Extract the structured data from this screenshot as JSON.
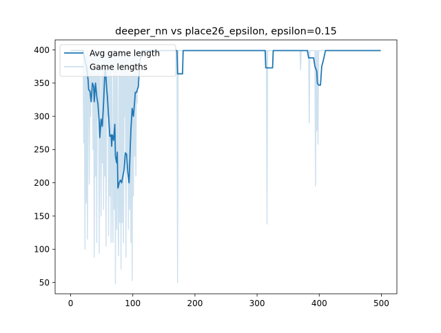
{
  "chart_data": {
    "type": "line",
    "title": "deeper_nn vs place26_epsilon, epsilon=0.15",
    "xlabel": "",
    "ylabel": "",
    "xlim": [
      -25,
      525
    ],
    "ylim": [
      33,
      415
    ],
    "x_ticks": [
      0,
      100,
      200,
      300,
      400,
      500
    ],
    "y_ticks": [
      50,
      100,
      150,
      200,
      250,
      300,
      350,
      400
    ],
    "grid": false,
    "legend_position": "top-left",
    "colors": {
      "avg": "#1f77b4",
      "raw": "#1f77b4"
    },
    "series": [
      {
        "name": "Avg game length",
        "style": "solid",
        "points": [
          [
            0,
            399
          ],
          [
            20,
            399
          ],
          [
            24,
            380
          ],
          [
            26,
            372
          ],
          [
            28,
            355
          ],
          [
            29,
            340
          ],
          [
            31,
            338
          ],
          [
            33,
            322
          ],
          [
            35,
            350
          ],
          [
            37,
            345
          ],
          [
            38,
            322
          ],
          [
            40,
            350
          ],
          [
            42,
            330
          ],
          [
            44,
            318
          ],
          [
            46,
            290
          ],
          [
            47,
            268
          ],
          [
            49,
            296
          ],
          [
            51,
            285
          ],
          [
            53,
            320
          ],
          [
            55,
            365
          ],
          [
            56,
            372
          ],
          [
            58,
            340
          ],
          [
            59,
            330
          ],
          [
            61,
            300
          ],
          [
            63,
            270
          ],
          [
            65,
            272
          ],
          [
            66,
            255
          ],
          [
            67,
            272
          ],
          [
            69,
            264
          ],
          [
            71,
            288
          ],
          [
            72,
            240
          ],
          [
            74,
            230
          ],
          [
            75,
            246
          ],
          [
            76,
            192
          ],
          [
            77,
            195
          ],
          [
            78,
            200
          ],
          [
            80,
            204
          ],
          [
            82,
            200
          ],
          [
            84,
            210
          ],
          [
            86,
            220
          ],
          [
            88,
            245
          ],
          [
            90,
            243
          ],
          [
            92,
            215
          ],
          [
            94,
            200
          ],
          [
            96,
            256
          ],
          [
            97,
            280
          ],
          [
            99,
            312
          ],
          [
            101,
            300
          ],
          [
            103,
            322
          ],
          [
            104,
            336
          ],
          [
            106,
            336
          ],
          [
            109,
            345
          ],
          [
            111,
            380
          ],
          [
            113,
            390
          ],
          [
            115,
            399
          ],
          [
            171,
            399
          ],
          [
            172,
            364
          ],
          [
            180,
            364
          ],
          [
            181,
            399
          ],
          [
            313,
            399
          ],
          [
            314,
            373
          ],
          [
            325,
            373
          ],
          [
            326,
            399
          ],
          [
            381,
            399
          ],
          [
            383,
            388
          ],
          [
            391,
            388
          ],
          [
            393,
            375
          ],
          [
            396,
            368
          ],
          [
            397,
            350
          ],
          [
            399,
            347
          ],
          [
            402,
            347
          ],
          [
            404,
            375
          ],
          [
            406,
            382
          ],
          [
            408,
            390
          ],
          [
            410,
            399
          ],
          [
            499,
            399
          ]
        ]
      },
      {
        "name": "Game lengths",
        "style": "faint",
        "points": [
          [
            0,
            399
          ],
          [
            20,
            399
          ],
          [
            21,
            260
          ],
          [
            22,
            390
          ],
          [
            23,
            100
          ],
          [
            24,
            399
          ],
          [
            25,
            170
          ],
          [
            26,
            399
          ],
          [
            27,
            115
          ],
          [
            28,
            399
          ],
          [
            29,
            380
          ],
          [
            30,
            198
          ],
          [
            31,
            399
          ],
          [
            32,
            300
          ],
          [
            33,
            399
          ],
          [
            34,
            330
          ],
          [
            35,
            399
          ],
          [
            36,
            250
          ],
          [
            37,
            399
          ],
          [
            38,
            88
          ],
          [
            39,
            399
          ],
          [
            40,
            210
          ],
          [
            41,
            399
          ],
          [
            42,
            110
          ],
          [
            43,
            399
          ],
          [
            44,
            320
          ],
          [
            45,
            399
          ],
          [
            46,
            94
          ],
          [
            47,
            399
          ],
          [
            48,
            260
          ],
          [
            49,
            150
          ],
          [
            50,
            399
          ],
          [
            51,
            230
          ],
          [
            52,
            399
          ],
          [
            53,
            160
          ],
          [
            54,
            399
          ],
          [
            55,
            210
          ],
          [
            56,
            399
          ],
          [
            57,
            105
          ],
          [
            58,
            399
          ],
          [
            59,
            300
          ],
          [
            60,
            399
          ],
          [
            61,
            120
          ],
          [
            62,
            399
          ],
          [
            63,
            180
          ],
          [
            64,
            399
          ],
          [
            65,
            110
          ],
          [
            66,
            399
          ],
          [
            67,
            210
          ],
          [
            68,
            110
          ],
          [
            69,
            399
          ],
          [
            70,
            160
          ],
          [
            71,
            399
          ],
          [
            72,
            48
          ],
          [
            73,
            399
          ],
          [
            74,
            130
          ],
          [
            75,
            399
          ],
          [
            76,
            170
          ],
          [
            77,
            90
          ],
          [
            78,
            399
          ],
          [
            79,
            140
          ],
          [
            80,
            399
          ],
          [
            81,
            70
          ],
          [
            82,
            399
          ],
          [
            83,
            140
          ],
          [
            84,
            399
          ],
          [
            85,
            110
          ],
          [
            86,
            399
          ],
          [
            87,
            300
          ],
          [
            88,
            399
          ],
          [
            89,
            88
          ],
          [
            90,
            399
          ],
          [
            91,
            240
          ],
          [
            92,
            399
          ],
          [
            93,
            130
          ],
          [
            94,
            380
          ],
          [
            95,
            160
          ],
          [
            96,
            399
          ],
          [
            97,
            110
          ],
          [
            98,
            399
          ],
          [
            99,
            53
          ],
          [
            100,
            399
          ],
          [
            101,
            180
          ],
          [
            102,
            399
          ],
          [
            103,
            240
          ],
          [
            104,
            399
          ],
          [
            105,
            210
          ],
          [
            106,
            399
          ],
          [
            107,
            320
          ],
          [
            108,
            399
          ],
          [
            171,
            399
          ],
          [
            172,
            50
          ],
          [
            173,
            399
          ],
          [
            315,
            399
          ],
          [
            316,
            138
          ],
          [
            317,
            399
          ],
          [
            369,
            399
          ],
          [
            370,
            370
          ],
          [
            371,
            399
          ],
          [
            383,
            399
          ],
          [
            384,
            290
          ],
          [
            385,
            399
          ],
          [
            393,
            399
          ],
          [
            394,
            195
          ],
          [
            395,
            399
          ],
          [
            396,
            278
          ],
          [
            397,
            399
          ],
          [
            398,
            258
          ],
          [
            399,
            399
          ],
          [
            499,
            399
          ]
        ]
      }
    ]
  }
}
